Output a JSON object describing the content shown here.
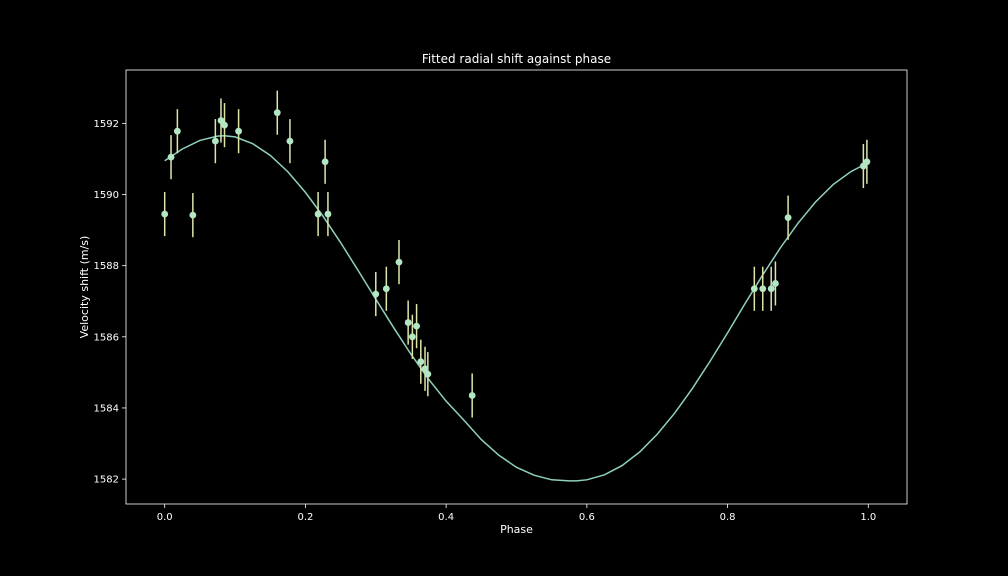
{
  "chart_data": {
    "type": "scatter",
    "title": "Fitted radial shift against phase",
    "xlabel": "Phase",
    "ylabel": "Velocity shift (m/s)",
    "xlim": [
      -0.055,
      1.055
    ],
    "ylim": [
      1581.3,
      1593.5
    ],
    "x_ticks": [
      0.0,
      0.2,
      0.4,
      0.6,
      0.8,
      1.0
    ],
    "x_tick_labels": [
      "0.0",
      "0.2",
      "0.4",
      "0.6",
      "0.8",
      "1.0"
    ],
    "y_ticks": [
      1582,
      1584,
      1586,
      1588,
      1590,
      1592
    ],
    "y_tick_labels": [
      "1582",
      "1584",
      "1586",
      "1588",
      "1590",
      "1592"
    ],
    "grid": false,
    "colors": {
      "background": "#000000",
      "points": "#b3e6c4",
      "errorbars": "#dde6a8",
      "fit_line": "#8fd1c0",
      "text": "#ffffff"
    },
    "points": [
      {
        "x": 0.0,
        "y": 1589.45,
        "err": 0.62
      },
      {
        "x": 0.009,
        "y": 1591.05,
        "err": 0.62
      },
      {
        "x": 0.018,
        "y": 1591.78,
        "err": 0.62
      },
      {
        "x": 0.04,
        "y": 1589.42,
        "err": 0.62
      },
      {
        "x": 0.072,
        "y": 1591.5,
        "err": 0.62
      },
      {
        "x": 0.08,
        "y": 1592.08,
        "err": 0.62
      },
      {
        "x": 0.085,
        "y": 1591.95,
        "err": 0.62
      },
      {
        "x": 0.105,
        "y": 1591.78,
        "err": 0.62
      },
      {
        "x": 0.16,
        "y": 1592.3,
        "err": 0.62
      },
      {
        "x": 0.178,
        "y": 1591.5,
        "err": 0.62
      },
      {
        "x": 0.218,
        "y": 1589.45,
        "err": 0.62
      },
      {
        "x": 0.228,
        "y": 1590.92,
        "err": 0.62
      },
      {
        "x": 0.232,
        "y": 1589.45,
        "err": 0.62
      },
      {
        "x": 0.3,
        "y": 1587.2,
        "err": 0.62
      },
      {
        "x": 0.315,
        "y": 1587.35,
        "err": 0.62
      },
      {
        "x": 0.333,
        "y": 1588.1,
        "err": 0.62
      },
      {
        "x": 0.346,
        "y": 1586.4,
        "err": 0.62
      },
      {
        "x": 0.352,
        "y": 1586.0,
        "err": 0.62
      },
      {
        "x": 0.358,
        "y": 1586.3,
        "err": 0.62
      },
      {
        "x": 0.364,
        "y": 1585.3,
        "err": 0.62
      },
      {
        "x": 0.37,
        "y": 1585.1,
        "err": 0.62
      },
      {
        "x": 0.374,
        "y": 1584.95,
        "err": 0.62
      },
      {
        "x": 0.437,
        "y": 1584.35,
        "err": 0.62
      },
      {
        "x": 0.838,
        "y": 1587.35,
        "err": 0.62
      },
      {
        "x": 0.85,
        "y": 1587.35,
        "err": 0.62
      },
      {
        "x": 0.862,
        "y": 1587.35,
        "err": 0.62
      },
      {
        "x": 0.868,
        "y": 1587.5,
        "err": 0.62
      },
      {
        "x": 0.886,
        "y": 1589.35,
        "err": 0.62
      },
      {
        "x": 0.993,
        "y": 1590.8,
        "err": 0.62
      },
      {
        "x": 0.998,
        "y": 1590.92,
        "err": 0.62
      }
    ],
    "fit": {
      "x": [
        0.0,
        0.025,
        0.05,
        0.075,
        0.085,
        0.1,
        0.125,
        0.15,
        0.175,
        0.2,
        0.225,
        0.25,
        0.275,
        0.3,
        0.325,
        0.35,
        0.375,
        0.4,
        0.425,
        0.45,
        0.475,
        0.5,
        0.525,
        0.55,
        0.575,
        0.585,
        0.6,
        0.625,
        0.65,
        0.675,
        0.7,
        0.725,
        0.75,
        0.775,
        0.8,
        0.825,
        0.85,
        0.875,
        0.9,
        0.925,
        0.95,
        0.975,
        1.0
      ],
      "y": [
        1590.95,
        1591.28,
        1591.52,
        1591.64,
        1591.65,
        1591.62,
        1591.43,
        1591.1,
        1590.64,
        1590.06,
        1589.39,
        1588.65,
        1587.86,
        1587.06,
        1586.27,
        1585.51,
        1584.81,
        1584.19,
        1583.66,
        1583.11,
        1582.67,
        1582.33,
        1582.11,
        1581.98,
        1581.95,
        1581.95,
        1581.98,
        1582.12,
        1582.38,
        1582.76,
        1583.26,
        1583.86,
        1584.55,
        1585.31,
        1586.11,
        1586.94,
        1587.74,
        1588.5,
        1589.19,
        1589.79,
        1590.28,
        1590.64,
        1590.9
      ]
    }
  }
}
